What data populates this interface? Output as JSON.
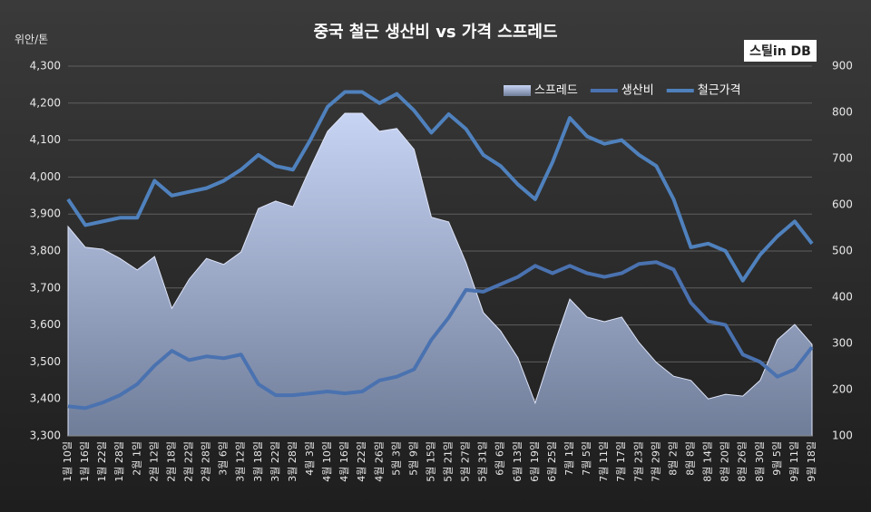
{
  "chart_data": {
    "type": "line",
    "title": "중국 철근 생산비 vs 가격 스프레드",
    "y_label": "위안/톤",
    "logo": "스틸in DB",
    "categories": [
      "1월 10일",
      "1월 16일",
      "1월 22일",
      "1월 28일",
      "2월 1일",
      "2월 12일",
      "2월 18일",
      "2월 22일",
      "2월 28일",
      "3월 6일",
      "3월 12일",
      "3월 18일",
      "3월 22일",
      "3월 28일",
      "4월 3일",
      "4월 10일",
      "4월 16일",
      "4월 22일",
      "4월 26일",
      "5월 3일",
      "5월 9일",
      "5월 15일",
      "5월 21일",
      "5월 27일",
      "5월 31일",
      "6월 6일",
      "6월 13일",
      "6월 19일",
      "6월 25일",
      "7월 1일",
      "7월 5일",
      "7월 11일",
      "7월 17일",
      "7월 23일",
      "7월 29일",
      "8월 2일",
      "8월 8일",
      "8월 14일",
      "8월 20일",
      "8월 26일",
      "8월 30일",
      "9월 5일",
      "9월 11일",
      "9월 18일"
    ],
    "series": [
      {
        "name": "스프레드",
        "kind": "area",
        "axis": "y2",
        "color": "#a9b8e0",
        "values": [
          553,
          508,
          504,
          484,
          459,
          488,
          376,
          439,
          484,
          471,
          498,
          592,
          608,
          596,
          680,
          759,
          798,
          798,
          759,
          765,
          720,
          573,
          563,
          475,
          367,
          327,
          269,
          171,
          288,
          396,
          357,
          347,
          357,
          302,
          259,
          229,
          220,
          180,
          190,
          186,
          220,
          308,
          341,
          298
        ]
      },
      {
        "name": "생산비",
        "kind": "line",
        "color": "#4a72b0",
        "values": [
          3380,
          3375,
          3390,
          3410,
          3440,
          3490,
          3530,
          3505,
          3515,
          3510,
          3520,
          3440,
          3410,
          3410,
          3415,
          3420,
          3415,
          3420,
          3450,
          3460,
          3480,
          3560,
          3620,
          3695,
          3690,
          3710,
          3730,
          3760,
          3740,
          3760,
          3740,
          3730,
          3740,
          3765,
          3770,
          3750,
          3660,
          3610,
          3600,
          3520,
          3500,
          3460,
          3480,
          3540
        ]
      },
      {
        "name": "철근가격",
        "kind": "line",
        "color": "#4f81bd",
        "values": [
          3940,
          3870,
          3880,
          3890,
          3890,
          3990,
          3950,
          3960,
          3970,
          3990,
          4020,
          4060,
          4030,
          4020,
          4100,
          4190,
          4230,
          4230,
          4200,
          4225,
          4180,
          4120,
          4170,
          4130,
          4060,
          4030,
          3980,
          3940,
          4040,
          4160,
          4110,
          4090,
          4100,
          4060,
          4030,
          3940,
          3810,
          3820,
          3800,
          3720,
          3790,
          3840,
          3880,
          3820
        ]
      }
    ],
    "ylim": [
      3300,
      4300
    ],
    "yticks": [
      {
        "value": 3300,
        "label": "3,300"
      },
      {
        "value": 3400,
        "label": "3,400"
      },
      {
        "value": 3500,
        "label": "3,500"
      },
      {
        "value": 3600,
        "label": "3,600"
      },
      {
        "value": 3700,
        "label": "3,700"
      },
      {
        "value": 3800,
        "label": "3,800"
      },
      {
        "value": 3900,
        "label": "3,900"
      },
      {
        "value": 4000,
        "label": "4,000"
      },
      {
        "value": 4100,
        "label": "4,100"
      },
      {
        "value": 4200,
        "label": "4,200"
      },
      {
        "value": 4300,
        "label": "4,300"
      }
    ],
    "y2lim": [
      100,
      900
    ],
    "y2ticks": [
      100,
      200,
      300,
      400,
      500,
      600,
      700,
      800,
      900
    ],
    "grid": true,
    "legend": "top-right"
  }
}
